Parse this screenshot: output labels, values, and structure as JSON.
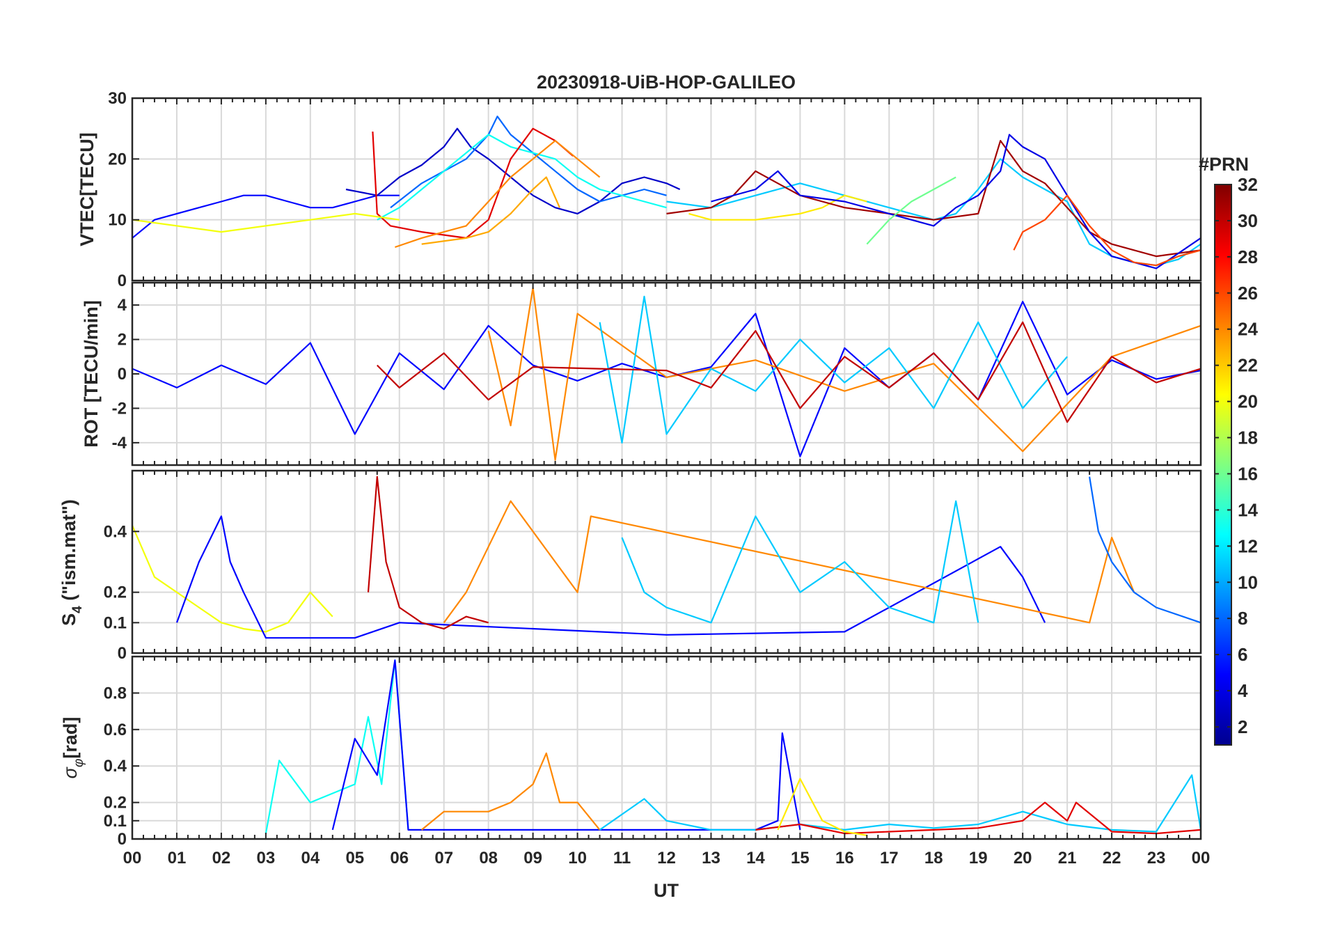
{
  "title": "20230918-UiB-HOP-GALILEO",
  "xlabel": "UT",
  "xticks": [
    "00",
    "01",
    "02",
    "03",
    "04",
    "05",
    "06",
    "07",
    "08",
    "09",
    "10",
    "11",
    "12",
    "13",
    "14",
    "15",
    "16",
    "17",
    "18",
    "19",
    "20",
    "21",
    "22",
    "23",
    "00"
  ],
  "colorbar": {
    "label": "#PRN",
    "range": [
      1,
      32
    ],
    "ticks": [
      "2",
      "4",
      "6",
      "8",
      "10",
      "12",
      "14",
      "16",
      "18",
      "20",
      "22",
      "24",
      "26",
      "28",
      "30",
      "32"
    ],
    "colormap": "jet",
    "stops": [
      "#00008f",
      "#0000ff",
      "#0080ff",
      "#00ffff",
      "#80ff80",
      "#ffff00",
      "#ff8000",
      "#ff0000",
      "#800000"
    ]
  },
  "panels": {
    "vtec": {
      "ylabel": "VTEC[TECU]",
      "yticks": [
        "0",
        "10",
        "20",
        "30"
      ]
    },
    "rot": {
      "ylabel": "ROT [TECU/min]",
      "yticks": [
        "-4",
        "-2",
        "0",
        "2",
        "4"
      ]
    },
    "s4": {
      "ylabel_main": "S",
      "ylabel_sub": "4",
      "ylabel_rest": " (\"ism.mat\")",
      "yticks": [
        "0",
        "0.1",
        "0.2",
        "0.4"
      ]
    },
    "sigma": {
      "ylabel_main": "σ",
      "ylabel_sub": "φ",
      "ylabel_rest": "[rad]",
      "yticks": [
        "0",
        "0.1",
        "0.2",
        "0.4",
        "0.6",
        "0.8"
      ]
    }
  },
  "chart_data": [
    {
      "type": "line",
      "title": "20230918-UiB-HOP-GALILEO",
      "ylabel": "VTEC[TECU]",
      "xlabel": "UT",
      "xlim": [
        0,
        24
      ],
      "ylim": [
        0,
        30
      ],
      "grid": true,
      "series": [
        {
          "prn": 5,
          "x": [
            0,
            0.5,
            1,
            1.5,
            2,
            2.5,
            3,
            3.5,
            4,
            4.5,
            5,
            5.5,
            6
          ],
          "y": [
            7,
            10,
            11,
            12,
            13,
            14,
            14,
            13,
            12,
            12,
            13,
            14,
            14
          ]
        },
        {
          "prn": 3,
          "x": [
            4.8,
            5.5,
            6,
            6.5,
            7,
            7.3,
            7.6,
            8,
            8.5,
            9,
            9.5,
            10,
            10.5,
            11,
            11.5,
            12,
            12.3
          ],
          "y": [
            15,
            14,
            17,
            19,
            22,
            25,
            22,
            20,
            17,
            14,
            12,
            11,
            13,
            16,
            17,
            16,
            15
          ]
        },
        {
          "prn": 8,
          "x": [
            5.8,
            6.5,
            7,
            7.5,
            8,
            8.2,
            8.5,
            9,
            9.5,
            10,
            10.5,
            11,
            11.5,
            12
          ],
          "y": [
            12,
            16,
            18,
            20,
            24,
            27,
            24,
            21,
            18,
            15,
            13,
            14,
            15,
            14
          ]
        },
        {
          "prn": 13,
          "x": [
            5.5,
            6,
            6.5,
            7,
            7.5,
            8,
            8.5,
            9,
            9.5,
            10,
            10.5,
            11,
            11.5,
            12
          ],
          "y": [
            10,
            12,
            15,
            18,
            21,
            24,
            22,
            21,
            20,
            17,
            15,
            14,
            13,
            12
          ]
        },
        {
          "prn": 29,
          "x": [
            5.4,
            5.5,
            5.8,
            6.5,
            7,
            7.5,
            8,
            8.5,
            9,
            9.5,
            9.9
          ],
          "y": [
            24.5,
            11,
            9,
            8,
            7.5,
            7,
            10,
            20,
            25,
            23,
            20.5
          ]
        },
        {
          "prn": 24,
          "x": [
            5.9,
            6.5,
            7,
            7.5,
            8,
            8.5,
            9,
            9.5,
            10,
            10.5
          ],
          "y": [
            5.5,
            7,
            8,
            9,
            13,
            17,
            20,
            23,
            20,
            17
          ]
        },
        {
          "prn": 23,
          "x": [
            6.5,
            7.5,
            8,
            8.5,
            9,
            9.3,
            9.6
          ],
          "y": [
            6,
            7,
            8,
            11,
            15,
            17,
            12
          ]
        },
        {
          "prn": 20,
          "x": [
            0,
            1,
            2,
            3,
            4,
            5,
            6
          ],
          "y": [
            10,
            9,
            8,
            9,
            10,
            11,
            10
          ]
        },
        {
          "prn": 11,
          "x": [
            12,
            13,
            14,
            15,
            16,
            17,
            17.5,
            18,
            18.5,
            19,
            19.5,
            20,
            20.5,
            21,
            21.5,
            22,
            22.5,
            23,
            23.5,
            24
          ],
          "y": [
            13,
            12,
            14,
            16,
            14,
            12,
            11,
            10,
            11,
            15,
            20,
            17,
            15,
            13,
            6,
            4,
            3,
            2.5,
            3.5,
            6
          ]
        },
        {
          "prn": 21,
          "x": [
            12.5,
            13,
            14,
            15,
            15.5,
            16,
            16.5
          ],
          "y": [
            11,
            10,
            10,
            11,
            12,
            14,
            13
          ]
        },
        {
          "prn": 31,
          "x": [
            12,
            13,
            13.5,
            14,
            14.5,
            15,
            15.5,
            16,
            17,
            18,
            19,
            19.5,
            20,
            20.5,
            21,
            21.5,
            22,
            23,
            24
          ],
          "y": [
            11,
            12,
            14,
            18,
            16,
            14,
            13,
            12,
            11,
            10,
            11,
            23,
            18,
            16,
            12,
            8,
            6,
            4,
            5
          ]
        },
        {
          "prn": 4,
          "x": [
            13,
            14,
            14.5,
            15,
            16,
            17,
            18,
            18.5,
            19,
            19.5,
            19.7,
            20,
            20.5,
            21,
            21.5,
            22,
            23,
            24
          ],
          "y": [
            13,
            15,
            18,
            14,
            13,
            11,
            9,
            12,
            14,
            18,
            24,
            22,
            20,
            14,
            8,
            4,
            2,
            7
          ]
        },
        {
          "prn": 26,
          "x": [
            19.8,
            20,
            20.5,
            21,
            21.5,
            22,
            22.5,
            23,
            23.5,
            24
          ],
          "y": [
            5,
            8,
            10,
            14,
            9,
            5,
            3,
            2.5,
            4,
            5
          ]
        },
        {
          "prn": 16,
          "x": [
            16.5,
            17,
            17.5,
            18,
            18.5
          ],
          "y": [
            6,
            10,
            13,
            15,
            17
          ]
        }
      ]
    },
    {
      "type": "line",
      "ylabel": "ROT [TECU/min]",
      "xlabel": "UT",
      "xlim": [
        0,
        24
      ],
      "ylim": [
        -5.3,
        5.3
      ],
      "grid": true,
      "series": [
        {
          "prn": 5,
          "note_free": false,
          "x": [
            0,
            1,
            2,
            3,
            4,
            5,
            6,
            7,
            8,
            9,
            10,
            11,
            12,
            13,
            14,
            15,
            16,
            17,
            18,
            19,
            20,
            21,
            22,
            23,
            24
          ],
          "y": [
            0.3,
            -0.8,
            0.5,
            -0.6,
            1.8,
            -3.5,
            1.2,
            -0.9,
            2.8,
            0.5,
            -0.4,
            0.6,
            -0.2,
            0.4,
            3.5,
            -4.8,
            1.5,
            -0.8,
            1.2,
            -1.5,
            4.2,
            -1.2,
            0.8,
            -0.3,
            0.2
          ]
        },
        {
          "prn": 24,
          "x": [
            8,
            8.5,
            9,
            9.5,
            10,
            12,
            14,
            16,
            18,
            20,
            22,
            24
          ],
          "y": [
            2.5,
            -3,
            5,
            -5,
            3.5,
            -0.2,
            0.8,
            -1,
            0.6,
            -4.5,
            1,
            2.8
          ]
        },
        {
          "prn": 11,
          "x": [
            10.5,
            11,
            11.5,
            12,
            13,
            14,
            15,
            16,
            17,
            18,
            19,
            20,
            21
          ],
          "y": [
            3,
            -4,
            4.5,
            -3.5,
            0.3,
            -1,
            2,
            -0.5,
            1.5,
            -2,
            3,
            -2,
            1
          ]
        },
        {
          "prn": 30,
          "x": [
            5.5,
            6,
            7,
            8,
            9,
            12,
            13,
            14,
            15,
            16,
            17,
            18,
            19,
            20,
            21,
            22,
            23,
            24
          ],
          "y": [
            0.5,
            -0.8,
            1.2,
            -1.5,
            0.4,
            0.2,
            -0.8,
            2.5,
            -2,
            1,
            -0.8,
            1.2,
            -1.5,
            3,
            -2.8,
            1,
            -0.5,
            0.3
          ]
        }
      ]
    },
    {
      "type": "line",
      "ylabel": "S4 (\"ism.mat\")",
      "xlabel": "UT",
      "xlim": [
        0,
        24
      ],
      "ylim": [
        0,
        0.6
      ],
      "grid": true,
      "series": [
        {
          "prn": 20,
          "x": [
            0,
            0.5,
            1,
            1.5,
            2,
            2.5,
            3,
            3.5,
            4,
            4.5
          ],
          "y": [
            0.42,
            0.25,
            0.2,
            0.15,
            0.1,
            0.08,
            0.07,
            0.1,
            0.2,
            0.12
          ]
        },
        {
          "prn": 5,
          "x": [
            1,
            1.5,
            2,
            2.2,
            2.5,
            3,
            5,
            6,
            12,
            16,
            19.5,
            20,
            20.5
          ],
          "y": [
            0.1,
            0.3,
            0.45,
            0.3,
            0.2,
            0.05,
            0.05,
            0.1,
            0.06,
            0.07,
            0.35,
            0.25,
            0.1
          ]
        },
        {
          "prn": 30,
          "x": [
            5.3,
            5.5,
            5.7,
            6,
            6.5,
            7,
            7.5,
            8
          ],
          "y": [
            0.2,
            0.58,
            0.3,
            0.15,
            0.1,
            0.08,
            0.12,
            0.1
          ]
        },
        {
          "prn": 24,
          "x": [
            7,
            7.5,
            8,
            8.5,
            9,
            9.5,
            10,
            10.3,
            21.5,
            22,
            22.5
          ],
          "y": [
            0.1,
            0.2,
            0.35,
            0.5,
            0.4,
            0.3,
            0.2,
            0.45,
            0.1,
            0.38,
            0.2
          ]
        },
        {
          "prn": 11,
          "x": [
            11,
            11.5,
            12,
            13,
            14,
            15,
            16,
            17,
            18,
            18.5,
            19
          ],
          "y": [
            0.38,
            0.2,
            0.15,
            0.1,
            0.45,
            0.2,
            0.3,
            0.15,
            0.1,
            0.5,
            0.1
          ]
        },
        {
          "prn": 8,
          "x": [
            21.5,
            21.7,
            22,
            22.5,
            23,
            24
          ],
          "y": [
            0.58,
            0.4,
            0.3,
            0.2,
            0.15,
            0.1
          ]
        }
      ]
    },
    {
      "type": "line",
      "ylabel": "σφ[rad]",
      "xlabel": "UT",
      "xlim": [
        0,
        24
      ],
      "ylim": [
        0,
        1.0
      ],
      "grid": true,
      "series": [
        {
          "prn": 13,
          "x": [
            3,
            3.3,
            4,
            4.5,
            5,
            5.3,
            5.6,
            5.9,
            6.2
          ],
          "y": [
            0.03,
            0.43,
            0.2,
            0.25,
            0.3,
            0.67,
            0.3,
            0.98,
            0.05
          ]
        },
        {
          "prn": 5,
          "x": [
            4.5,
            5,
            5.5,
            5.9,
            6.2,
            14,
            14.5,
            14.6,
            15
          ],
          "y": [
            0.05,
            0.55,
            0.35,
            0.98,
            0.05,
            0.05,
            0.1,
            0.58,
            0.05
          ]
        },
        {
          "prn": 24,
          "x": [
            6.5,
            7,
            8,
            8.5,
            9,
            9.3,
            9.6,
            10,
            10.5
          ],
          "y": [
            0.05,
            0.15,
            0.15,
            0.2,
            0.3,
            0.47,
            0.2,
            0.2,
            0.05
          ]
        },
        {
          "prn": 11,
          "x": [
            10.5,
            11.5,
            12,
            13,
            14,
            15,
            16,
            17,
            18,
            19,
            20,
            21,
            22,
            23,
            23.8,
            24
          ],
          "y": [
            0.05,
            0.22,
            0.1,
            0.05,
            0.05,
            0.08,
            0.05,
            0.08,
            0.06,
            0.08,
            0.15,
            0.08,
            0.05,
            0.04,
            0.35,
            0.05
          ]
        },
        {
          "prn": 29,
          "x": [
            14,
            15,
            16,
            17,
            18,
            19,
            20,
            20.5,
            21,
            21.2,
            22,
            23,
            24
          ],
          "y": [
            0.05,
            0.08,
            0.03,
            0.04,
            0.05,
            0.06,
            0.1,
            0.2,
            0.1,
            0.2,
            0.04,
            0.03,
            0.05
          ]
        },
        {
          "prn": 21,
          "x": [
            14.5,
            15,
            15.5,
            16,
            16.5
          ],
          "y": [
            0.05,
            0.33,
            0.1,
            0.04,
            0.02
          ]
        }
      ]
    }
  ]
}
